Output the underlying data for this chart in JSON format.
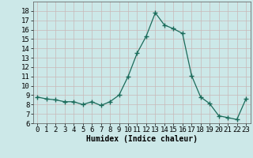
{
  "x": [
    0,
    1,
    2,
    3,
    4,
    5,
    6,
    7,
    8,
    9,
    10,
    11,
    12,
    13,
    14,
    15,
    16,
    17,
    18,
    19,
    20,
    21,
    22,
    23
  ],
  "y": [
    8.8,
    8.6,
    8.5,
    8.3,
    8.3,
    8.0,
    8.3,
    7.9,
    8.3,
    9.0,
    11.0,
    13.5,
    15.3,
    17.8,
    16.5,
    16.1,
    15.6,
    11.1,
    8.8,
    8.1,
    6.8,
    6.6,
    6.4,
    8.6
  ],
  "xlabel": "Humidex (Indice chaleur)",
  "ylim": [
    6,
    19
  ],
  "xlim": [
    -0.5,
    23.5
  ],
  "yticks": [
    6,
    7,
    8,
    9,
    10,
    11,
    12,
    13,
    14,
    15,
    16,
    17,
    18
  ],
  "xticks": [
    0,
    1,
    2,
    3,
    4,
    5,
    6,
    7,
    8,
    9,
    10,
    11,
    12,
    13,
    14,
    15,
    16,
    17,
    18,
    19,
    20,
    21,
    22,
    23
  ],
  "line_color": "#1a6b5a",
  "marker": "+",
  "marker_size": 4,
  "bg_color": "#cce8e8",
  "grid_color": "#c8b8b8",
  "xlabel_fontsize": 7,
  "tick_fontsize": 6.5
}
